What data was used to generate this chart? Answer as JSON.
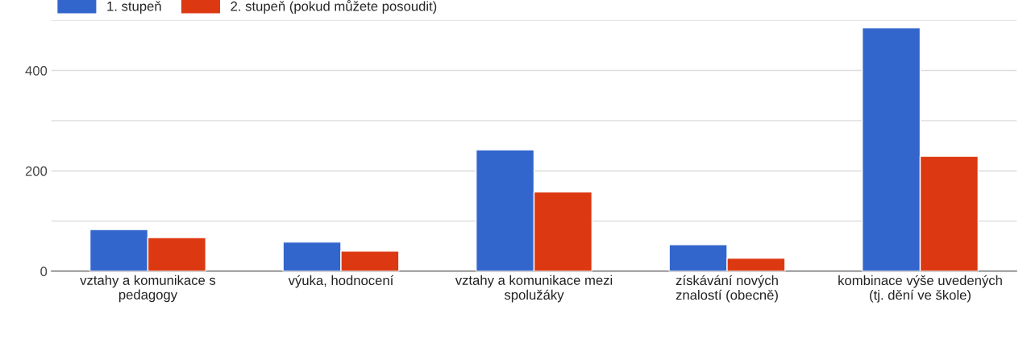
{
  "chart_data": {
    "type": "bar",
    "categories": [
      "vztahy a komunikace s pedagogy",
      "výuka, hodnocení",
      "vztahy a komunikace mezi spolužáky",
      "získávání nových znalostí (obecně)",
      "kombinace výše uvedených (tj. dění ve škole)"
    ],
    "series": [
      {
        "name": "1. stupeň",
        "color": "#3366cc",
        "values": [
          83,
          58,
          242,
          53,
          485
        ]
      },
      {
        "name": "2. stupeň (pokud můžete posoudit)",
        "color": "#dc3912",
        "values": [
          67,
          40,
          158,
          26,
          229
        ]
      }
    ],
    "ylim": [
      0,
      500
    ],
    "yticks": [
      0,
      {
        "value": 100,
        "label": null
      },
      200,
      {
        "value": 300,
        "label": null
      },
      400,
      {
        "value": 500,
        "label": null
      }
    ],
    "grid": "y",
    "legend": "top left"
  }
}
